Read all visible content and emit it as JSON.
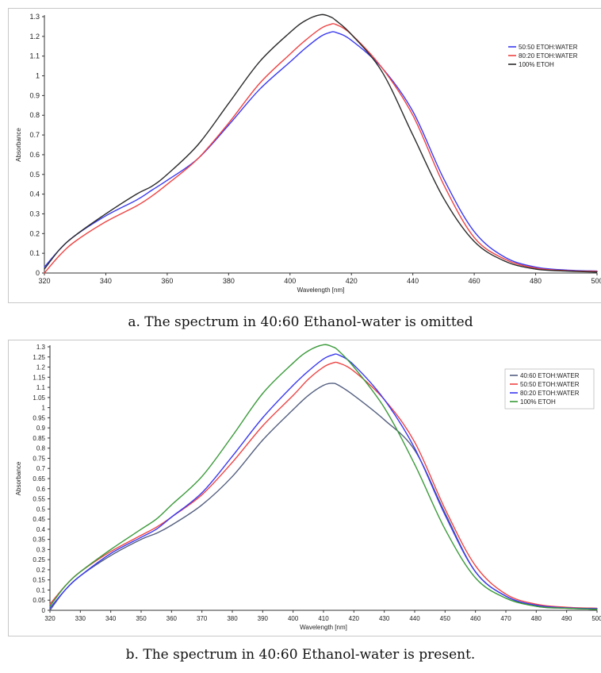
{
  "chart_data": [
    {
      "type": "line",
      "xlabel": "Wavelength [nm]",
      "ylabel": "Absorbance",
      "xlim": [
        320,
        500
      ],
      "ylim": [
        0,
        1.3
      ],
      "xticks": [
        320,
        340,
        360,
        380,
        400,
        420,
        440,
        460,
        480,
        500
      ],
      "yticks": [
        0,
        0.1,
        0.2,
        0.3,
        0.4,
        0.5,
        0.6,
        0.7,
        0.8,
        0.9,
        1,
        1.1,
        1.2,
        1.3
      ],
      "grid": false,
      "legend_position": "top-right",
      "x": [
        320,
        325,
        330,
        340,
        350,
        355,
        360,
        370,
        380,
        390,
        400,
        405,
        410,
        413,
        415,
        420,
        430,
        440,
        450,
        460,
        470,
        480,
        490,
        500
      ],
      "series": [
        {
          "name": "50:50 ETOH:WATER",
          "color": "#3a3af0",
          "values": [
            0.03,
            0.12,
            0.19,
            0.29,
            0.37,
            0.42,
            0.47,
            0.58,
            0.75,
            0.93,
            1.07,
            1.14,
            1.2,
            1.22,
            1.22,
            1.18,
            1.04,
            0.82,
            0.48,
            0.21,
            0.08,
            0.03,
            0.015,
            0.01
          ]
        },
        {
          "name": "80:20 ETOH:WATER",
          "color": "#ee4444",
          "values": [
            0.0,
            0.09,
            0.16,
            0.26,
            0.34,
            0.39,
            0.45,
            0.58,
            0.76,
            0.96,
            1.11,
            1.18,
            1.24,
            1.26,
            1.26,
            1.21,
            1.04,
            0.8,
            0.45,
            0.18,
            0.07,
            0.025,
            0.012,
            0.008
          ]
        },
        {
          "name": "100%  ETOH",
          "color": "#2a2a2a",
          "values": [
            0.02,
            0.12,
            0.19,
            0.3,
            0.4,
            0.44,
            0.5,
            0.65,
            0.86,
            1.07,
            1.22,
            1.28,
            1.31,
            1.3,
            1.28,
            1.21,
            1.02,
            0.7,
            0.38,
            0.16,
            0.06,
            0.02,
            0.01,
            0.005
          ]
        }
      ]
    },
    {
      "type": "line",
      "xlabel": "Wavelength [nm]",
      "ylabel": "Absorbance",
      "xlim": [
        320,
        500
      ],
      "ylim": [
        0,
        1.3
      ],
      "xticks": [
        320,
        330,
        340,
        350,
        360,
        370,
        380,
        390,
        400,
        410,
        420,
        430,
        440,
        450,
        460,
        470,
        480,
        490,
        500
      ],
      "yticks": [
        0,
        0.05,
        0.1,
        0.15,
        0.2,
        0.25,
        0.3,
        0.35,
        0.4,
        0.45,
        0.5,
        0.55,
        0.6,
        0.65,
        0.7,
        0.75,
        0.8,
        0.85,
        0.9,
        0.95,
        1,
        1.05,
        1.1,
        1.15,
        1.2,
        1.25,
        1.3
      ],
      "grid": false,
      "legend_position": "top-right",
      "x": [
        320,
        325,
        330,
        340,
        350,
        355,
        360,
        370,
        380,
        390,
        400,
        405,
        410,
        413,
        415,
        420,
        430,
        440,
        450,
        460,
        470,
        480,
        490,
        500
      ],
      "series": [
        {
          "name": "40:60 ETOH:WATER",
          "color": "#556080",
          "values": [
            0.0,
            0.1,
            0.17,
            0.27,
            0.35,
            0.38,
            0.42,
            0.52,
            0.66,
            0.84,
            0.99,
            1.06,
            1.11,
            1.12,
            1.11,
            1.06,
            0.94,
            0.79,
            0.48,
            0.19,
            0.07,
            0.02,
            0.01,
            0.005
          ]
        },
        {
          "name": "50:50 ETOH:WATER",
          "color": "#ee4444",
          "values": [
            0.03,
            0.12,
            0.19,
            0.29,
            0.37,
            0.41,
            0.46,
            0.57,
            0.73,
            0.91,
            1.06,
            1.14,
            1.2,
            1.22,
            1.22,
            1.18,
            1.04,
            0.83,
            0.5,
            0.22,
            0.08,
            0.03,
            0.015,
            0.01
          ]
        },
        {
          "name": "80:20 ETOH:WATER",
          "color": "#3a3af0",
          "values": [
            0.01,
            0.1,
            0.17,
            0.28,
            0.36,
            0.4,
            0.46,
            0.58,
            0.76,
            0.95,
            1.11,
            1.18,
            1.24,
            1.26,
            1.26,
            1.21,
            1.04,
            0.8,
            0.47,
            0.19,
            0.07,
            0.025,
            0.012,
            0.008
          ]
        },
        {
          "name": "100%  ETOH",
          "color": "#3a9a3a",
          "values": [
            0.02,
            0.12,
            0.19,
            0.3,
            0.4,
            0.45,
            0.52,
            0.66,
            0.86,
            1.07,
            1.22,
            1.28,
            1.31,
            1.3,
            1.28,
            1.2,
            1.0,
            0.72,
            0.4,
            0.16,
            0.06,
            0.02,
            0.01,
            0.005
          ]
        }
      ]
    }
  ],
  "captions": {
    "a": "a. The spectrum in 40:60 Ethanol-water is omitted",
    "b": "b. The spectrum in 40:60 Ethanol-water is present."
  }
}
